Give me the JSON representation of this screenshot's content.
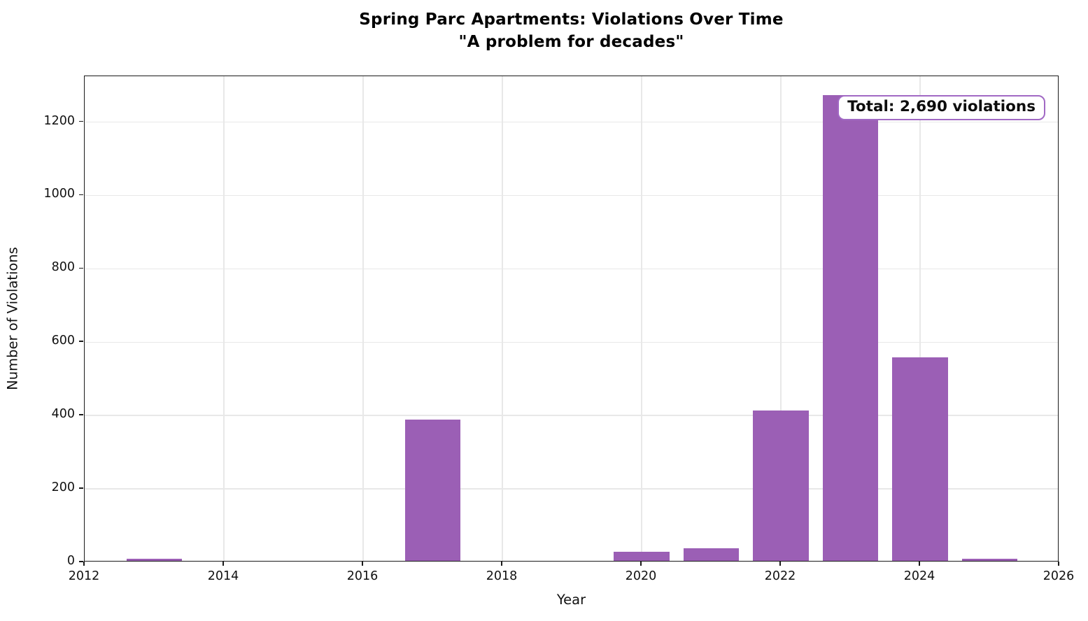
{
  "title": {
    "line1": "Spring Parc Apartments: Violations Over Time",
    "line2": "\"A problem for decades\""
  },
  "annotation": {
    "text": "Total: 2,690 violations"
  },
  "axes": {
    "xlabel": "Year",
    "ylabel": "Number of Violations"
  },
  "chart_data": {
    "type": "bar",
    "title": "Spring Parc Apartments: Violations Over Time",
    "subtitle": "\"A problem for decades\"",
    "xlabel": "Year",
    "ylabel": "Number of Violations",
    "x": [
      2013,
      2017,
      2020,
      2021,
      2022,
      2023,
      2024,
      2025
    ],
    "values": [
      5,
      385,
      25,
      35,
      410,
      1270,
      555,
      5
    ],
    "total_violations": 2690,
    "annotation_text": "Total: 2,690 violations",
    "bar_width_years": 0.8,
    "xlim": [
      2012,
      2026
    ],
    "ylim": [
      0,
      1325
    ],
    "xticks": [
      "2012",
      "2014",
      "2016",
      "2018",
      "2020",
      "2022",
      "2024",
      "2026"
    ],
    "yticks": [
      "0",
      "200",
      "400",
      "600",
      "800",
      "1000",
      "1200"
    ],
    "grid": true,
    "legend": "none",
    "colors": {
      "bar_fill": "#9b5fb5",
      "annotation_border": "#a169c4",
      "annotation_text": "#0d0d0d",
      "grid_line": "#e8e8e8",
      "spine": "#1a1a1a"
    }
  }
}
